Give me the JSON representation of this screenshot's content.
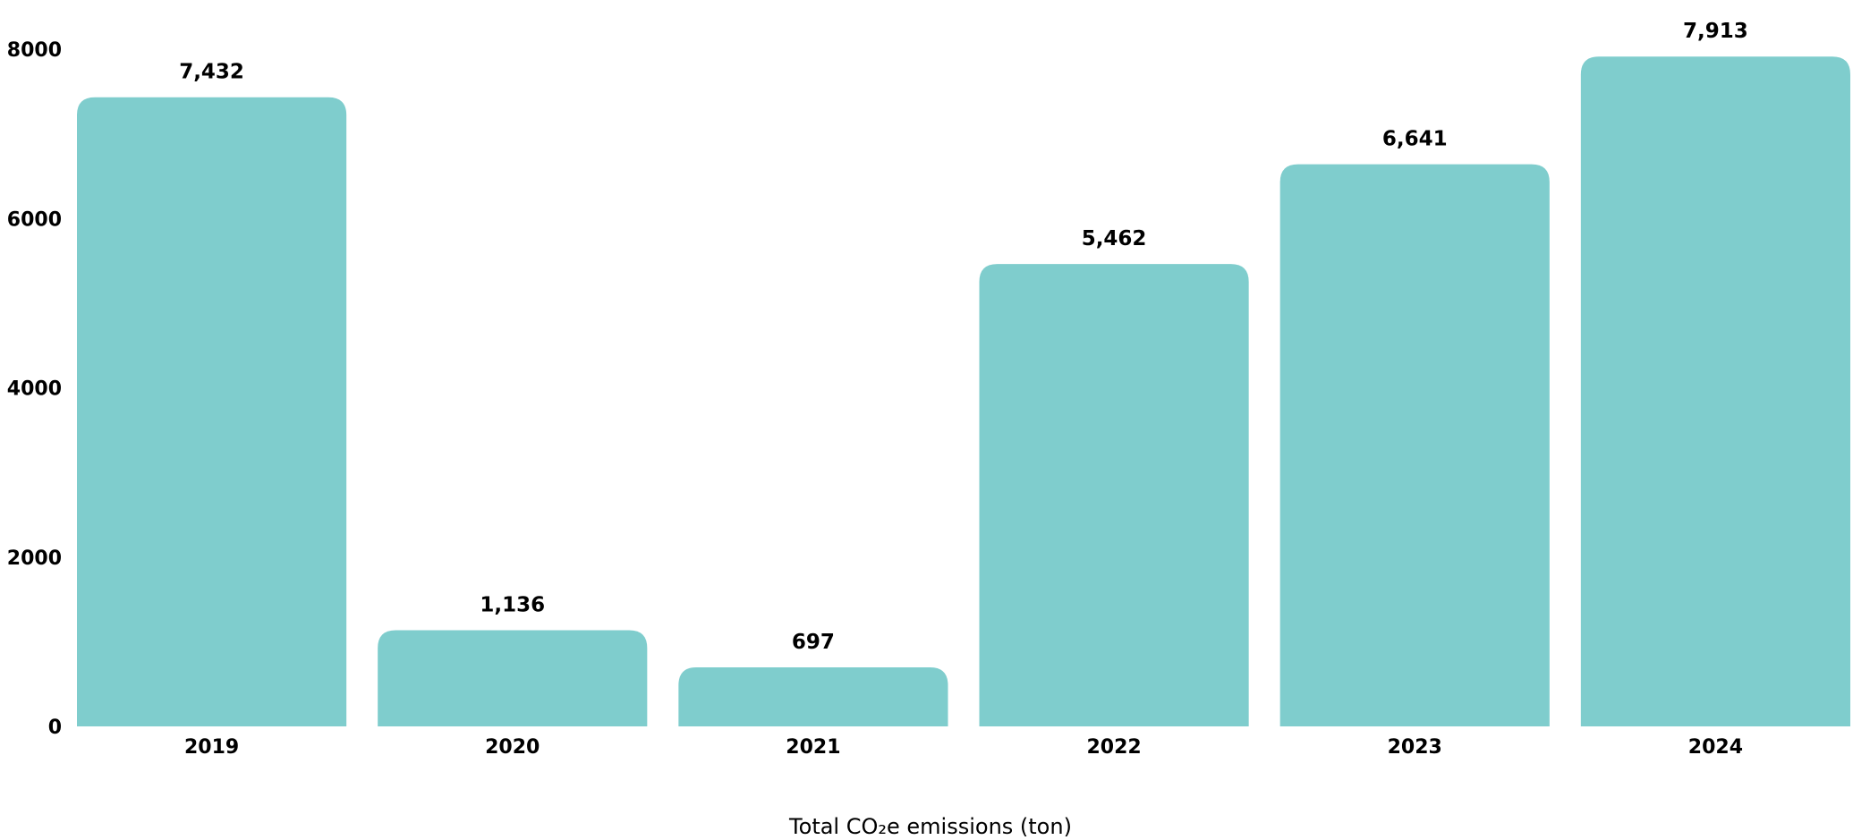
{
  "chart_data": {
    "type": "bar",
    "categories": [
      "2019",
      "2020",
      "2021",
      "2022",
      "2023",
      "2024"
    ],
    "values": [
      7432,
      1136,
      697,
      5462,
      6641,
      7913
    ],
    "value_labels": [
      "7,432",
      "1,136",
      "697",
      "5,462",
      "6,641",
      "7,913"
    ],
    "title": "",
    "xlabel": "Total CO₂e emissions (ton)",
    "ylabel": "",
    "ylim": [
      0,
      8000
    ],
    "yticks": [
      0,
      2000,
      4000,
      6000,
      8000
    ],
    "ytick_labels": [
      "0",
      "2000",
      "4000",
      "6000",
      "8000"
    ],
    "grid": false,
    "legend": "none",
    "bar_color": "#7FCDCD"
  }
}
